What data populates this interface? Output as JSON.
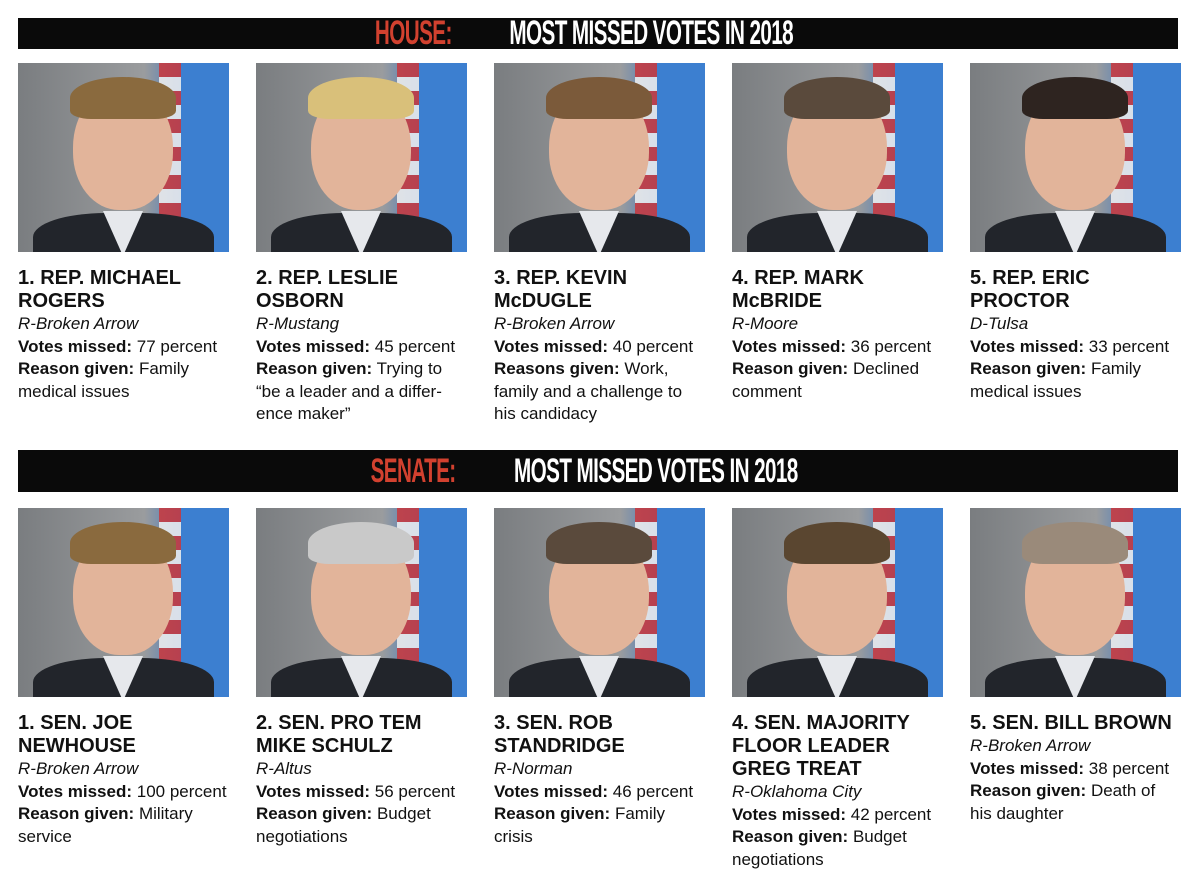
{
  "house": {
    "banner_prefix": "HOUSE:",
    "banner_title": "MOST MISSED VOTES IN 2018",
    "members": [
      {
        "name": "1. REP. MICHAEL ROGERS",
        "district": "R-Broken Arrow",
        "votes_label": "Votes missed:",
        "votes": "77 percent",
        "reason_label": "Reason given:",
        "reason": "Family medical issues",
        "hair": "#8a6a3e"
      },
      {
        "name": "2. REP. LESLIE OSBORN",
        "district": "R-Mustang",
        "votes_label": "Votes missed:",
        "votes": "45 percent",
        "reason_label": "Reason given:",
        "reason": "Trying to “be a leader and a differ-ence maker”",
        "hair": "#d9c07a"
      },
      {
        "name": "3. REP. KEVIN McDUGLE",
        "district": "R-Broken Arrow",
        "votes_label": "Votes missed:",
        "votes": "40 percent",
        "reason_label": "Reasons given:",
        "reason": "Work, family and a challenge to his candidacy",
        "hair": "#7b5a3a"
      },
      {
        "name": "4. REP. MARK McBRIDE",
        "district": "R-Moore",
        "votes_label": "Votes missed:",
        "votes": "36 percent",
        "reason_label": "Reason given:",
        "reason": "Declined comment",
        "hair": "#5a4a3c"
      },
      {
        "name": "5. REP. ERIC PROCTOR",
        "district": "D-Tulsa",
        "votes_label": "Votes missed:",
        "votes": "33 percent",
        "reason_label": "Reason given:",
        "reason": "Family medical issues",
        "hair": "#2e2420"
      }
    ]
  },
  "senate": {
    "banner_prefix": "SENATE:",
    "banner_title": "MOST MISSED VOTES IN 2018",
    "members": [
      {
        "name": "1. SEN. JOE NEWHOUSE",
        "district": "R-Broken Arrow",
        "votes_label": "Votes missed:",
        "votes": "100 percent",
        "reason_label": "Reason given:",
        "reason": "Military service",
        "hair": "#8a6a3e"
      },
      {
        "name": "2. SEN. PRO TEM MIKE SCHULZ",
        "district": "R-Altus",
        "votes_label": "Votes missed:",
        "votes": "56 percent",
        "reason_label": "Reason given:",
        "reason": "Budget negotiations",
        "hair": "#c9c9c9"
      },
      {
        "name": "3. SEN. ROB STANDRIDGE",
        "district": "R-Norman",
        "votes_label": "Votes missed:",
        "votes": "46 percent",
        "reason_label": "Reason given:",
        "reason": "Family crisis",
        "hair": "#5a4a3c"
      },
      {
        "name": "4. SEN. MAJORITY FLOOR LEADER GREG TREAT",
        "district": "R-Oklahoma City",
        "votes_label": "Votes missed:",
        "votes": "42 percent",
        "reason_label": "Reason given:",
        "reason": "Budget negotiations",
        "hair": "#5a4630"
      },
      {
        "name": "5. SEN. BILL BROWN",
        "district": "R-Broken Arrow",
        "votes_label": "Votes missed:",
        "votes": "38 percent",
        "reason_label": "Reason given:",
        "reason": "Death of his daughter",
        "hair": "#9a8a7a"
      }
    ]
  },
  "colors": {
    "accent_red": "#d2412f",
    "banner_bg": "#0a0a0a"
  }
}
